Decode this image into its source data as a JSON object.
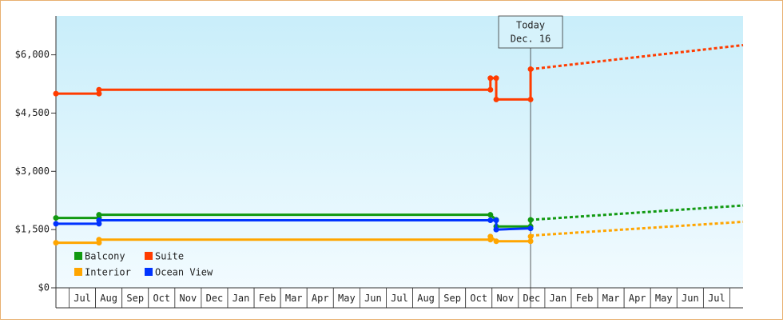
{
  "chart_data": {
    "type": "line",
    "xlim": [
      -0.5,
      25.5
    ],
    "xticks": [
      {
        "value": 0.5,
        "label": "Jul"
      },
      {
        "value": 1.5,
        "label": "Aug"
      },
      {
        "value": 2.5,
        "label": "Sep"
      },
      {
        "value": 3.5,
        "label": "Oct"
      },
      {
        "value": 4.5,
        "label": "Nov"
      },
      {
        "value": 5.5,
        "label": "Dec"
      },
      {
        "value": 6.5,
        "label": "Jan"
      },
      {
        "value": 7.5,
        "label": "Feb"
      },
      {
        "value": 8.5,
        "label": "Mar"
      },
      {
        "value": 9.5,
        "label": "Apr"
      },
      {
        "value": 10.5,
        "label": "May"
      },
      {
        "value": 11.5,
        "label": "Jun"
      },
      {
        "value": 12.5,
        "label": "Jul"
      },
      {
        "value": 13.5,
        "label": "Aug"
      },
      {
        "value": 14.5,
        "label": "Sep"
      },
      {
        "value": 15.5,
        "label": "Oct"
      },
      {
        "value": 16.5,
        "label": "Nov"
      },
      {
        "value": 17.5,
        "label": "Dec"
      },
      {
        "value": 18.5,
        "label": "Jan"
      },
      {
        "value": 19.5,
        "label": "Feb"
      },
      {
        "value": 20.5,
        "label": "Mar"
      },
      {
        "value": 21.5,
        "label": "Apr"
      },
      {
        "value": 22.5,
        "label": "May"
      },
      {
        "value": 23.5,
        "label": "Jun"
      },
      {
        "value": 24.5,
        "label": "Jul"
      }
    ],
    "ylim": [
      0,
      7000
    ],
    "yticks": [
      {
        "value": 0,
        "label": "$0"
      },
      {
        "value": 1500,
        "label": "$1,500"
      },
      {
        "value": 3000,
        "label": "$3,000"
      },
      {
        "value": 4500,
        "label": "$4,500"
      },
      {
        "value": 6000,
        "label": "$6,000"
      }
    ],
    "legend": "bottom-left",
    "annotation": {
      "text": [
        "Today",
        "Dec. 16"
      ],
      "x": 17.46
    },
    "series": [
      {
        "name": "Balcony",
        "color": "#119911",
        "x": [
          -0.5,
          1.13,
          1.13,
          15.94,
          16.16,
          16.16,
          17.46,
          17.46
        ],
        "values": [
          1800,
          1800,
          1880,
          1880,
          1750,
          1580,
          1580,
          1750
        ],
        "forecast": {
          "x": [
            17.46,
            25.5
          ],
          "values": [
            1750,
            2120
          ]
        }
      },
      {
        "name": "Suite",
        "color": "#ff3c00",
        "x": [
          -0.5,
          1.13,
          1.13,
          15.94,
          15.94,
          16.16,
          16.16,
          17.46,
          17.46
        ],
        "values": [
          5000,
          5000,
          5100,
          5100,
          5400,
          5400,
          4850,
          4850,
          5630
        ],
        "forecast": {
          "x": [
            17.46,
            25.5
          ],
          "values": [
            5630,
            6250
          ]
        }
      },
      {
        "name": "Interior",
        "color": "#ffa500",
        "x": [
          -0.5,
          1.13,
          1.13,
          15.94,
          15.94,
          16.16,
          17.46,
          17.46
        ],
        "values": [
          1160,
          1160,
          1240,
          1240,
          1320,
          1200,
          1200,
          1320
        ],
        "forecast": {
          "x": [
            17.46,
            25.5
          ],
          "values": [
            1345,
            1700
          ]
        }
      },
      {
        "name": "Ocean View",
        "color": "#0033ff",
        "x": [
          -0.5,
          1.13,
          1.13,
          15.94,
          16.16,
          16.16,
          17.46
        ],
        "values": [
          1650,
          1650,
          1740,
          1740,
          1740,
          1500,
          1530
        ]
      }
    ]
  }
}
